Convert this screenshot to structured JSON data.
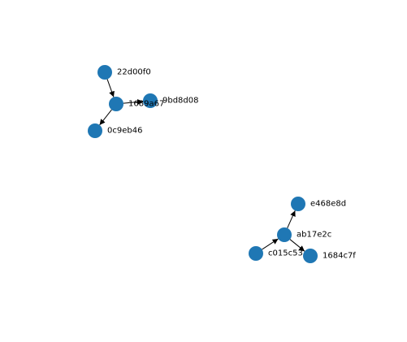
{
  "colors": {
    "node_fill": "#1f77b4",
    "edge": "#000000",
    "label": "#000000",
    "background": "#ffffff"
  },
  "graph": {
    "directed": true,
    "nodes": [
      {
        "id": "22d00f0",
        "label": "22d00f0"
      },
      {
        "id": "1689a67",
        "label": "1689a67"
      },
      {
        "id": "9bd8d08",
        "label": "9bd8d08"
      },
      {
        "id": "0c9eb46",
        "label": "0c9eb46"
      },
      {
        "id": "e468e8d",
        "label": "e468e8d"
      },
      {
        "id": "ab17e2c",
        "label": "ab17e2c"
      },
      {
        "id": "c015c53",
        "label": "c015c53"
      },
      {
        "id": "1684c7f",
        "label": "1684c7f"
      }
    ],
    "edges": [
      {
        "source": "22d00f0",
        "target": "1689a67"
      },
      {
        "source": "1689a67",
        "target": "0c9eb46"
      },
      {
        "source": "1689a67",
        "target": "9bd8d08"
      },
      {
        "source": "ab17e2c",
        "target": "e468e8d"
      },
      {
        "source": "c015c53",
        "target": "ab17e2c"
      },
      {
        "source": "ab17e2c",
        "target": "1684c7f"
      }
    ]
  }
}
